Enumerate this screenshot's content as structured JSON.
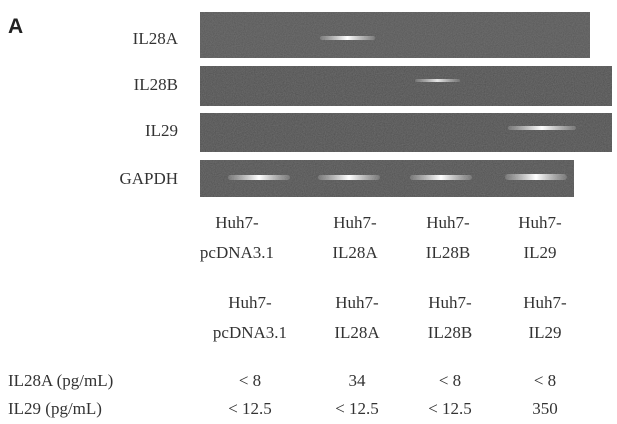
{
  "panel_label": "A",
  "gel": {
    "rows": [
      {
        "label": "IL28A"
      },
      {
        "label": "IL28B"
      },
      {
        "label": "IL29"
      },
      {
        "label": "GAPDH"
      }
    ],
    "lanes": [
      [
        "Huh7-",
        "pcDNA3.1"
      ],
      [
        "Huh7-",
        "IL28A"
      ],
      [
        "Huh7-",
        "IL28B"
      ],
      [
        "Huh7-",
        "IL29"
      ]
    ]
  },
  "table": {
    "columns": [
      [
        "Huh7-",
        "pcDNA3.1"
      ],
      [
        "Huh7-",
        "IL28A"
      ],
      [
        "Huh7-",
        "IL28B"
      ],
      [
        "Huh7-",
        "IL29"
      ]
    ],
    "rows": [
      [
        "IL28A (pg/mL)",
        "< 8",
        "34",
        "< 8",
        "< 8"
      ],
      [
        "IL29 (pg/mL)",
        "< 12.5",
        "< 12.5",
        "< 12.5",
        "350"
      ]
    ]
  }
}
